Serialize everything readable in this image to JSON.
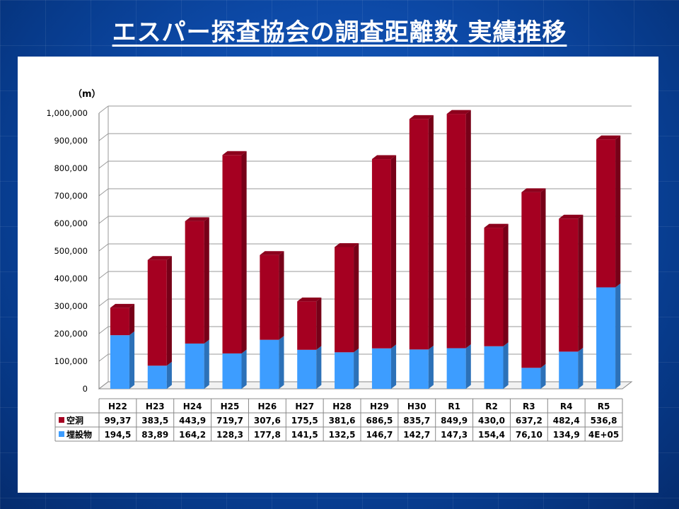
{
  "slide": {
    "title": "エスパー探査協会の調査距離数 実績推移"
  },
  "colors": {
    "cavity": "#a50021",
    "buried": "#3d9dff"
  },
  "chart_data": {
    "type": "bar",
    "stacked": true,
    "unit_label": "（m）",
    "categories": [
      "H22",
      "H23",
      "H24",
      "H25",
      "H26",
      "H27",
      "H28",
      "H29",
      "H30",
      "R1",
      "R2",
      "R3",
      "R4",
      "R5"
    ],
    "ylim": [
      0,
      1000000
    ],
    "yticks": [
      "0",
      "100,000",
      "200,000",
      "300,000",
      "400,000",
      "500,000",
      "600,000",
      "700,000",
      "800,000",
      "900,000",
      "1,000,000"
    ],
    "grid": true,
    "series": [
      {
        "name": "空洞",
        "color": "#a50021",
        "values": [
          99370,
          383500,
          443900,
          719700,
          307600,
          175500,
          381600,
          686500,
          835700,
          849900,
          430000,
          637200,
          482400,
          536800
        ],
        "table_labels": [
          "99,37",
          "383,5",
          "443,9",
          "719,7",
          "307,6",
          "175,5",
          "381,6",
          "686,5",
          "835,7",
          "849,9",
          "430,0",
          "637,2",
          "482,4",
          "536,8"
        ]
      },
      {
        "name": "埋設物",
        "color": "#3d9dff",
        "values": [
          194500,
          83890,
          164200,
          128300,
          177800,
          141500,
          132500,
          146700,
          142700,
          147300,
          154400,
          76100,
          134900,
          368000
        ],
        "table_labels": [
          "194,5",
          "83,89",
          "164,2",
          "128,3",
          "177,8",
          "141,5",
          "132,5",
          "146,7",
          "142,7",
          "147,3",
          "154,4",
          "76,10",
          "134,9",
          "4E+05"
        ]
      }
    ]
  }
}
